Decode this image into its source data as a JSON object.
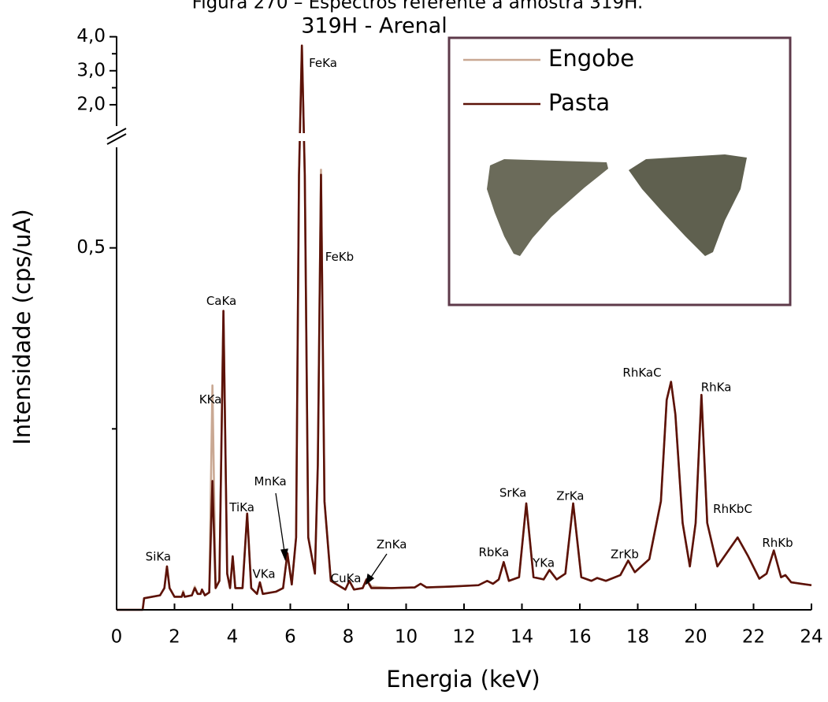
{
  "caption": "Figura 270 – Espectros referente à amostra 319H.",
  "chart_data": {
    "type": "line",
    "title": "319H - Arenal",
    "x_label": "Energia (keV)",
    "y_label": "Intensidade (cps/uA)",
    "x": [
      0,
      0.9,
      0.95,
      1.5,
      1.65,
      1.74,
      1.83,
      2.0,
      2.25,
      2.3,
      2.35,
      2.6,
      2.7,
      2.8,
      2.9,
      2.95,
      3.05,
      3.2,
      3.31,
      3.42,
      3.55,
      3.69,
      3.82,
      3.92,
      4.01,
      4.1,
      4.35,
      4.51,
      4.65,
      4.85,
      4.95,
      5.05,
      5.5,
      5.75,
      5.9,
      6.05,
      6.2,
      6.3,
      6.4,
      6.5,
      6.62,
      6.85,
      6.95,
      7.06,
      7.18,
      7.4,
      7.9,
      8.04,
      8.2,
      8.5,
      8.63,
      8.8,
      9.5,
      10.3,
      10.5,
      10.7,
      11.5,
      12.5,
      12.8,
      13.0,
      13.2,
      13.37,
      13.55,
      13.9,
      14.15,
      14.4,
      14.75,
      14.95,
      15.2,
      15.5,
      15.77,
      16.05,
      16.4,
      16.6,
      16.9,
      17.4,
      17.67,
      17.9,
      18.4,
      18.8,
      19.0,
      19.15,
      19.3,
      19.55,
      19.8,
      20.0,
      20.2,
      20.4,
      20.75,
      21.1,
      21.45,
      21.8,
      22.2,
      22.45,
      22.7,
      22.95,
      23.1,
      23.3,
      24
    ],
    "series": [
      {
        "name": "Engobe",
        "color": "#c9a893",
        "values": [
          0,
          0,
          0.016,
          0.02,
          0.03,
          0.06,
          0.03,
          0.018,
          0.018,
          0.026,
          0.018,
          0.02,
          0.032,
          0.022,
          0.022,
          0.028,
          0.02,
          0.024,
          0.31,
          0.03,
          0.04,
          0.413,
          0.05,
          0.03,
          0.074,
          0.03,
          0.03,
          0.133,
          0.03,
          0.022,
          0.038,
          0.022,
          0.025,
          0.03,
          0.078,
          0.035,
          0.1,
          0.6,
          3.74,
          0.6,
          0.1,
          0.05,
          0.2,
          0.608,
          0.15,
          0.04,
          0.028,
          0.04,
          0.028,
          0.03,
          0.042,
          0.032,
          0.03,
          0.031,
          0.036,
          0.031,
          0.032,
          0.034,
          0.04,
          0.036,
          0.042,
          0.066,
          0.04,
          0.045,
          0.147,
          0.045,
          0.042,
          0.055,
          0.042,
          0.05,
          0.147,
          0.045,
          0.04,
          0.044,
          0.04,
          0.048,
          0.068,
          0.052,
          0.07,
          0.15,
          0.29,
          0.315,
          0.27,
          0.12,
          0.06,
          0.12,
          0.297,
          0.12,
          0.06,
          0.08,
          0.1,
          0.075,
          0.043,
          0.05,
          0.082,
          0.045,
          0.048,
          0.038,
          0.034
        ]
      },
      {
        "name": "Pasta",
        "color": "#5c1208",
        "values": [
          0,
          0,
          0.016,
          0.02,
          0.03,
          0.06,
          0.03,
          0.018,
          0.018,
          0.024,
          0.018,
          0.02,
          0.03,
          0.022,
          0.022,
          0.028,
          0.02,
          0.024,
          0.178,
          0.03,
          0.04,
          0.413,
          0.05,
          0.03,
          0.074,
          0.03,
          0.03,
          0.133,
          0.03,
          0.022,
          0.038,
          0.022,
          0.025,
          0.03,
          0.078,
          0.035,
          0.1,
          0.6,
          3.74,
          0.6,
          0.1,
          0.05,
          0.2,
          0.601,
          0.15,
          0.04,
          0.028,
          0.04,
          0.028,
          0.03,
          0.042,
          0.03,
          0.03,
          0.031,
          0.036,
          0.031,
          0.032,
          0.034,
          0.04,
          0.036,
          0.042,
          0.066,
          0.04,
          0.045,
          0.147,
          0.045,
          0.042,
          0.055,
          0.042,
          0.05,
          0.147,
          0.045,
          0.04,
          0.044,
          0.04,
          0.048,
          0.068,
          0.052,
          0.07,
          0.15,
          0.29,
          0.315,
          0.27,
          0.12,
          0.06,
          0.12,
          0.297,
          0.12,
          0.06,
          0.08,
          0.1,
          0.075,
          0.043,
          0.05,
          0.082,
          0.045,
          0.048,
          0.038,
          0.034
        ]
      }
    ],
    "xlim": [
      0,
      24
    ],
    "xticks": [
      0,
      2,
      4,
      6,
      8,
      10,
      12,
      14,
      16,
      18,
      20,
      22,
      24
    ],
    "ylim": [
      0,
      4.2
    ],
    "ybreak": [
      0.64,
      1.35
    ],
    "yticks": [
      {
        "value": 0.5,
        "label": "0,5"
      },
      {
        "value": 2,
        "label": "2,0"
      },
      {
        "value": 3,
        "label": "3,0"
      },
      {
        "value": 4,
        "label": "4,0"
      }
    ],
    "yticks_unlabeled": [
      0.25,
      2.5,
      3.5
    ],
    "legend": "upper right",
    "annotations": [
      {
        "text": "SiKa",
        "x": 1.44,
        "y": 0.073
      },
      {
        "text": "KKa",
        "x": 3.24,
        "y": 0.29
      },
      {
        "text": "CaKa",
        "x": 3.62,
        "y": 0.426
      },
      {
        "text": "TiKa",
        "x": 4.33,
        "y": 0.141
      },
      {
        "text": "VKa",
        "x": 5.09,
        "y": 0.049
      },
      {
        "text": "MnKa",
        "x": 5.31,
        "y": 0.177
      },
      {
        "text": "FeKa",
        "x": 7.13,
        "y": 3.21
      },
      {
        "text": "FeKb",
        "x": 7.7,
        "y": 0.487
      },
      {
        "text": "CuKa",
        "x": 7.92,
        "y": 0.043
      },
      {
        "text": "ZnKa",
        "x": 9.5,
        "y": 0.09
      },
      {
        "text": "RbKa",
        "x": 13.03,
        "y": 0.079
      },
      {
        "text": "SrKa",
        "x": 13.69,
        "y": 0.161
      },
      {
        "text": "YKa",
        "x": 14.75,
        "y": 0.064
      },
      {
        "text": "ZrKa",
        "x": 15.67,
        "y": 0.157
      },
      {
        "text": "ZrKb",
        "x": 17.55,
        "y": 0.076
      },
      {
        "text": "RhKaC",
        "x": 18.15,
        "y": 0.327
      },
      {
        "text": "RhKa",
        "x": 20.71,
        "y": 0.307
      },
      {
        "text": "RhKbC",
        "x": 21.28,
        "y": 0.139
      },
      {
        "text": "RhKb",
        "x": 22.83,
        "y": 0.092
      }
    ]
  }
}
